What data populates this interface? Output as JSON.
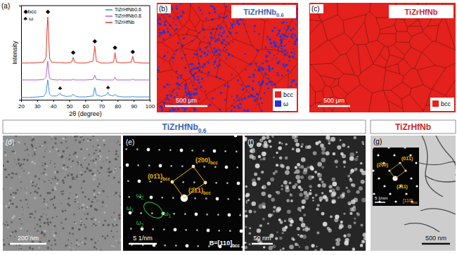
{
  "chart_data": {
    "type": "line",
    "x_label": "2θ (degree)",
    "y_label": "Intensity",
    "x": [
      20,
      25,
      30,
      34,
      35.5,
      36.2,
      36.6,
      37,
      37.7,
      39,
      42,
      43.5,
      44.2,
      45,
      48,
      51.5,
      52.4,
      53.3,
      56,
      60,
      64.8,
      65.8,
      66.8,
      70,
      73.2,
      74,
      74.8,
      77.5,
      78.4,
      79.3,
      83,
      88.5,
      89.4,
      90.3,
      95,
      100
    ],
    "series": [
      {
        "name": "TiZrHfNb0.6",
        "color": "#3d8fe0",
        "values": [
          2.5,
          2.5,
          3,
          3.5,
          7,
          17,
          21,
          15,
          6,
          4,
          4,
          5.5,
          7,
          5,
          3.5,
          4,
          6,
          4,
          3,
          3,
          4,
          13,
          5,
          3.5,
          5.5,
          8,
          5,
          4,
          6,
          4,
          3,
          3,
          3.5,
          3,
          3,
          3
        ]
      },
      {
        "name": "TiZrHfNb0.8",
        "color": "#b15fd8",
        "values": [
          21,
          21,
          21,
          21.5,
          24,
          36,
          41,
          33,
          23,
          21.5,
          21,
          21,
          21.5,
          21,
          21,
          21,
          22,
          21,
          21,
          21,
          21.5,
          26,
          21.5,
          21,
          21,
          21,
          21,
          21,
          24,
          21,
          21,
          21,
          22,
          21,
          21,
          21
        ]
      },
      {
        "name": "TiZrHfNb",
        "color": "#e0392b",
        "values": [
          39,
          39,
          39.5,
          40,
          45,
          78,
          88,
          73,
          44,
          40,
          39.5,
          39.5,
          39.5,
          39.5,
          39,
          40,
          45,
          40,
          39,
          39,
          41,
          57,
          41,
          39,
          39,
          39,
          39,
          40,
          50,
          40,
          39,
          40,
          46,
          40,
          39,
          39
        ]
      }
    ],
    "xlim": [
      20,
      100
    ],
    "xticks": [
      20,
      30,
      40,
      50,
      60,
      70,
      80,
      90,
      100
    ],
    "ylim": [
      0,
      100
    ],
    "yticks": [],
    "tick_labels": "x",
    "legend": "upper-right",
    "annotations": [
      {
        "text": "◆bcc",
        "x": 21.5,
        "y": 93
      },
      {
        "text": "♣ ω",
        "x": 21.5,
        "y": 86
      },
      {
        "text": "◆",
        "x": 36.6,
        "y": 93
      },
      {
        "text": "◆",
        "x": 52.4,
        "y": 50
      },
      {
        "text": "◆",
        "x": 65.8,
        "y": 62
      },
      {
        "text": "◆",
        "x": 78.4,
        "y": 55
      },
      {
        "text": "◆",
        "x": 89.4,
        "y": 51
      },
      {
        "text": "♣",
        "x": 44.2,
        "y": 12
      },
      {
        "text": "♣",
        "x": 74,
        "y": 13
      }
    ]
  },
  "figure": {
    "panel_labels": [
      "(a)",
      "(b)",
      "(c)",
      "(d)",
      "(e)",
      "(f)",
      "(g)"
    ],
    "ebsd": [
      {
        "title": {
          "text": "TiZrHfNb",
          "sub": "0.6"
        },
        "color": "#3b63b5",
        "phases": [
          {
            "label": "bcc",
            "color": "#e4211c"
          },
          {
            "label": "ω",
            "color": "#2233dd"
          }
        ],
        "scale_bar": "500 μm"
      },
      {
        "title": {
          "text": "TiZrHfNb"
        },
        "color": "#c8262c",
        "phases": [
          {
            "label": "bcc",
            "color": "#e4211c"
          }
        ],
        "scale_bar": "500 μm"
      }
    ],
    "tem": {
      "headers": [
        {
          "text": "TiZrHfNb",
          "sub": "0.6",
          "color": "#3b63b5"
        },
        {
          "text": "TiZrHfNb",
          "color": "#c8262c"
        }
      ],
      "d": {
        "scale_bar": "200 nm"
      },
      "e": {
        "planes": [
          {
            "text": "(2̄00)",
            "sub": "bcc"
          },
          {
            "text": "(01̄1)",
            "sub": "bcc"
          },
          {
            "text": "(2̄1̄1)",
            "sub": "bcc"
          }
        ],
        "omega": [
          {
            "text": "ω",
            "sub": "2"
          },
          {
            "text": "ω",
            "sub": "1"
          },
          {
            "text": "ω",
            "sub": "2"
          },
          {
            "text": "ω",
            "sub": "1"
          }
        ],
        "scale_bar": "5 1/nm",
        "zone_axis": {
          "text": "B=[110]",
          "sub": "bcc"
        }
      },
      "f": {
        "scale_bar": "50 nm"
      },
      "g": {
        "planes": [
          "(2̄00)",
          "(01̄1)",
          "(2̄11)"
        ],
        "inset_scale_bar": "5 1/nm",
        "zone_axis": {
          "text": "[110]",
          "sub": "bcc"
        },
        "scale_bar": "500 nm"
      }
    }
  }
}
